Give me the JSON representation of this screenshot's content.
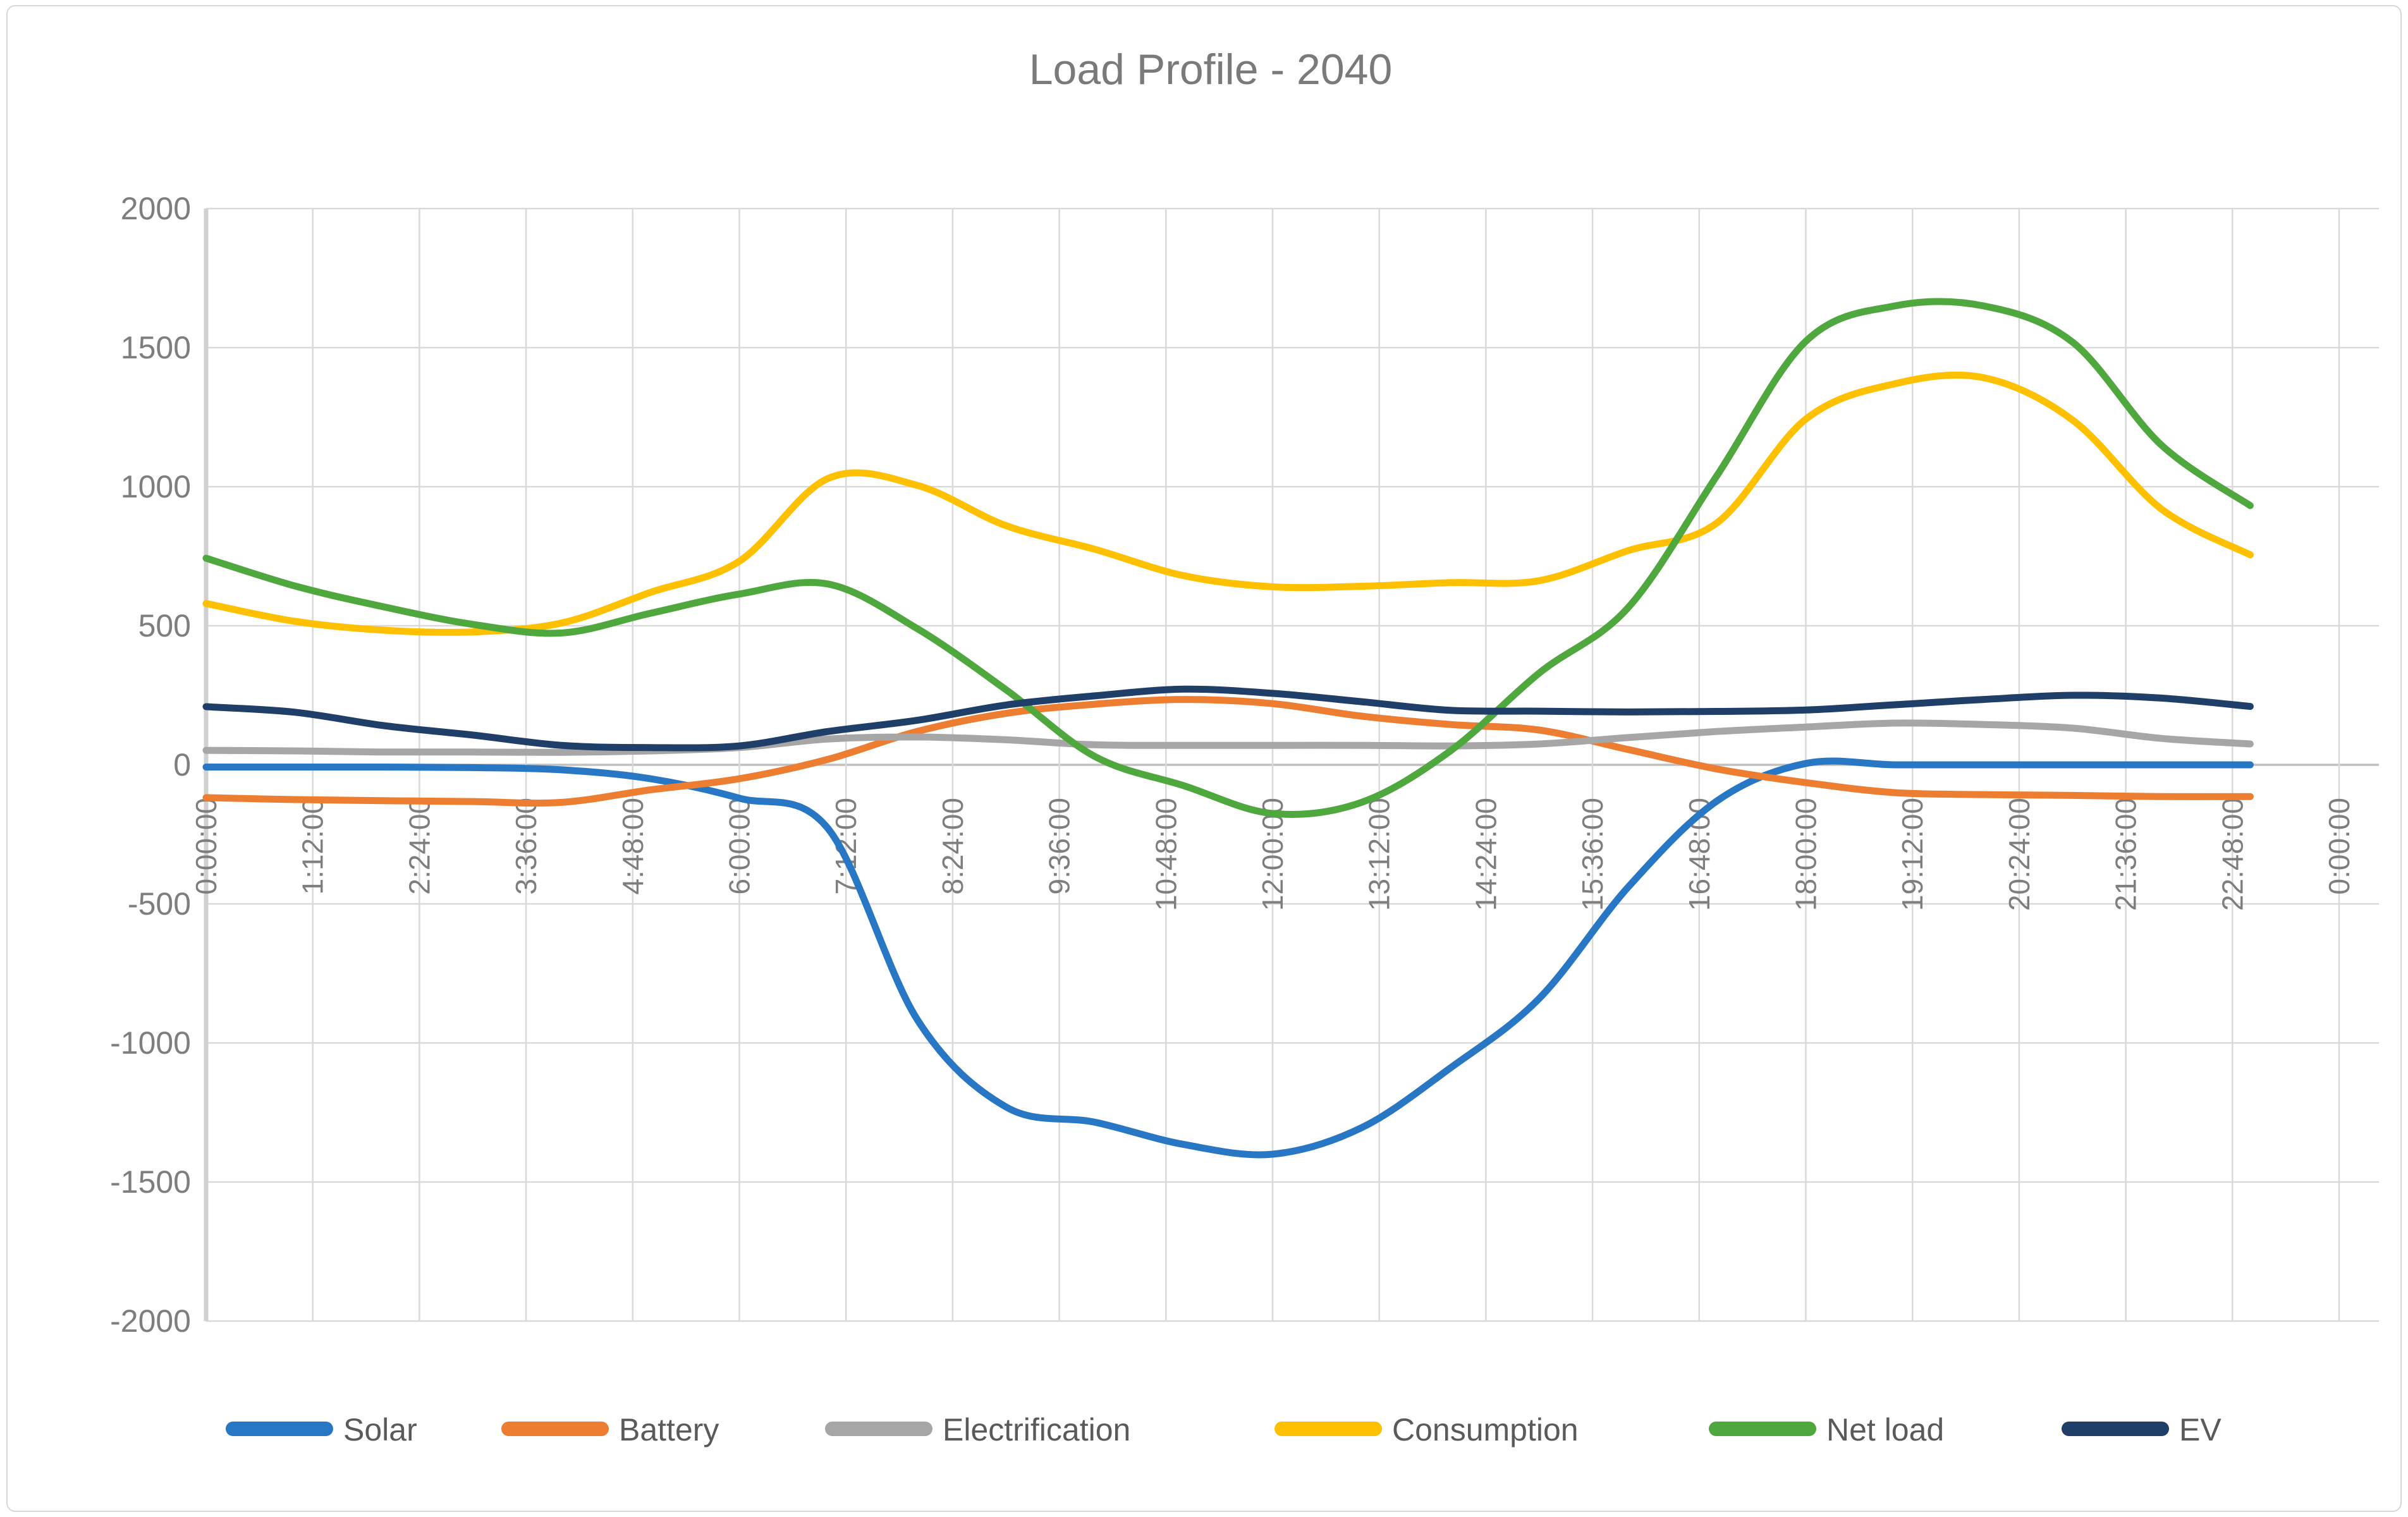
{
  "chart_data": {
    "type": "line",
    "title": "Load Profile - 2040",
    "smooth": true,
    "grid": true,
    "legend_position": "bottom",
    "x_unit": "time_of_day_hours",
    "x_range_hours": [
      0,
      24
    ],
    "data_end_hour": 23,
    "x_tick_interval": "1:12:00",
    "x_tick_labels": [
      "0:00:00",
      "1:12:00",
      "2:24:00",
      "3:36:00",
      "4:48:00",
      "6:00:00",
      "7:12:00",
      "8:24:00",
      "9:36:00",
      "10:48:00",
      "12:00:00",
      "13:12:00",
      "14:24:00",
      "15:36:00",
      "16:48:00",
      "18:00:00",
      "19:12:00",
      "20:24:00",
      "21:36:00",
      "22:48:00",
      "0:00:00"
    ],
    "ylim": [
      -2000,
      2000
    ],
    "y_tick_step": 500,
    "y_tick_labels": [
      "2000",
      "1500",
      "1000",
      "500",
      "0",
      "-500",
      "-1000",
      "-1500",
      "-2000"
    ],
    "hours": [
      0,
      1,
      2,
      3,
      4,
      5,
      6,
      7,
      8,
      9,
      10,
      11,
      12,
      13,
      14,
      15,
      16,
      17,
      18,
      19,
      20,
      21,
      22,
      23
    ],
    "series": [
      {
        "name": "Solar",
        "color": "#2777C4",
        "values": [
          -8,
          -8,
          -8,
          -10,
          -18,
          -50,
          -120,
          -230,
          -915,
          -1230,
          -1285,
          -1365,
          -1400,
          -1305,
          -1090,
          -840,
          -440,
          -130,
          5,
          0,
          0,
          0,
          0,
          0
        ]
      },
      {
        "name": "Battery",
        "color": "#ED7D31",
        "values": [
          -118,
          -125,
          -129,
          -132,
          -135,
          -90,
          -50,
          20,
          120,
          185,
          218,
          235,
          220,
          175,
          145,
          125,
          55,
          -15,
          -64,
          -100,
          -107,
          -110,
          -114,
          -114
        ]
      },
      {
        "name": "Electrification",
        "color": "#A6A6A6",
        "values": [
          52,
          50,
          46,
          46,
          45,
          50,
          62,
          93,
          100,
          90,
          72,
          70,
          70,
          70,
          68,
          75,
          98,
          120,
          136,
          150,
          145,
          132,
          95,
          75
        ]
      },
      {
        "name": "Consumption",
        "color": "#FFC000",
        "values": [
          580,
          516,
          484,
          478,
          510,
          620,
          732,
          1030,
          1005,
          860,
          775,
          680,
          640,
          642,
          655,
          662,
          770,
          870,
          1243,
          1370,
          1392,
          1240,
          920,
          755
        ]
      },
      {
        "name": "Net load",
        "color": "#4FA83D",
        "values": [
          743,
          643,
          568,
          505,
          474,
          545,
          614,
          650,
          490,
          270,
          30,
          -75,
          -175,
          -135,
          50,
          330,
          565,
          1040,
          1523,
          1650,
          1650,
          1520,
          1150,
          932
        ]
      },
      {
        "name": "EV",
        "color": "#1F3F68",
        "values": [
          209,
          189,
          141,
          107,
          70,
          62,
          68,
          120,
          160,
          215,
          248,
          272,
          257,
          227,
          196,
          193,
          190,
          192,
          197,
          216,
          235,
          250,
          240,
          210
        ]
      }
    ],
    "style": {
      "grid_color": "#D9D9D9",
      "zero_line_color": "#C0C0C0",
      "y_axis_line_color": "#D0D0D0",
      "axis_text_color": "#7E7E7E",
      "title_color": "#7A7A7A",
      "legend_text_color": "#5A5A5A",
      "plot_border_color": "#D7D7D7"
    }
  }
}
